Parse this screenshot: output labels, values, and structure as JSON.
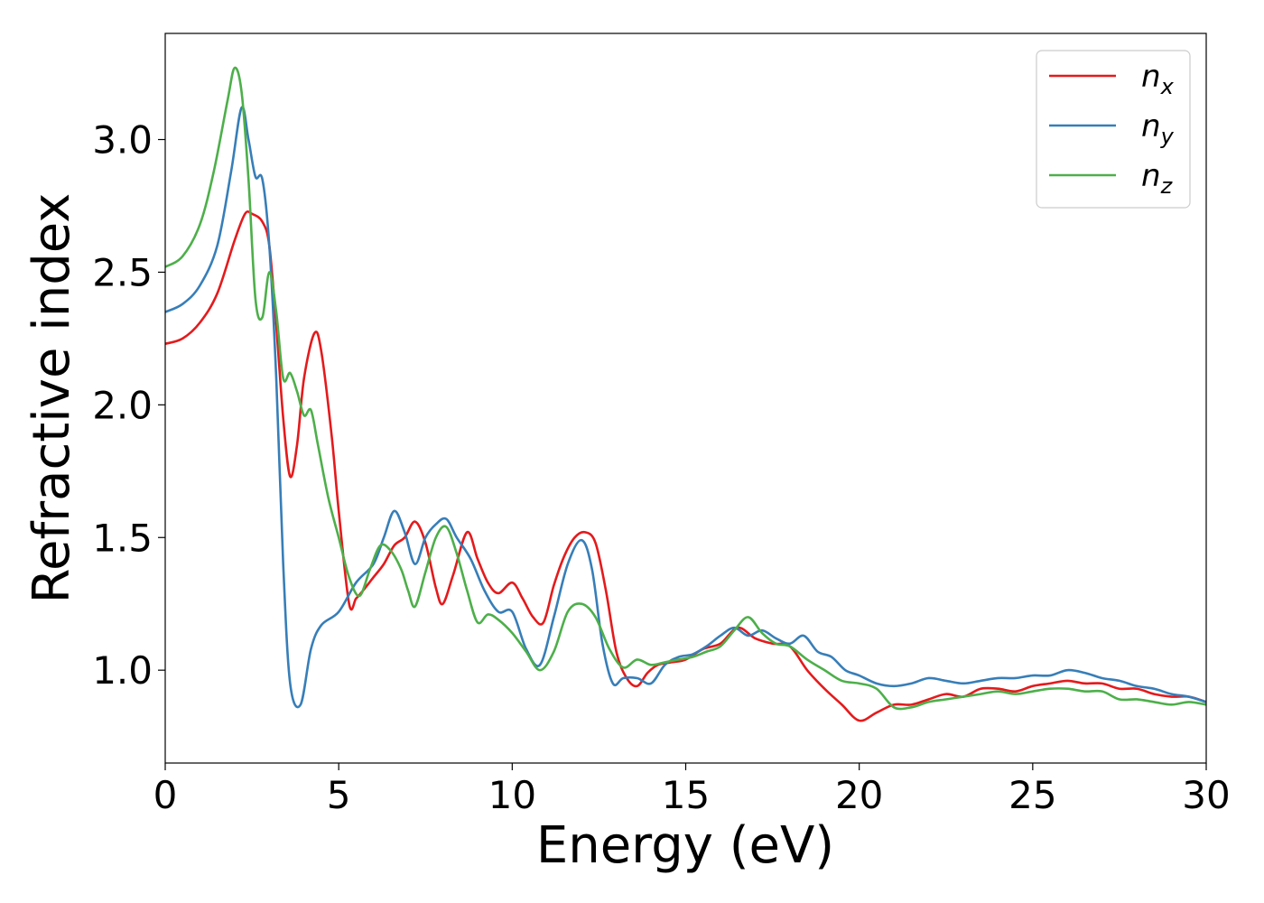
{
  "chart_data": {
    "type": "line",
    "title": "",
    "xlabel": "Energy (eV)",
    "ylabel": "Refractive index",
    "xlim": [
      0,
      30
    ],
    "ylim": [
      0.65,
      3.4
    ],
    "xticks": [
      0,
      5,
      10,
      15,
      20,
      25,
      30
    ],
    "xtick_labels": [
      "0",
      "5",
      "10",
      "15",
      "20",
      "25",
      "30"
    ],
    "yticks": [
      1.0,
      1.5,
      2.0,
      2.5,
      3.0
    ],
    "ytick_labels": [
      "1.0",
      "1.5",
      "2.0",
      "2.5",
      "3.0"
    ],
    "grid": false,
    "legend_position": "top-right",
    "series": [
      {
        "name": "n_x",
        "legend_base": "n",
        "legend_sub": "x",
        "color": "#e41a1c",
        "x": [
          0,
          0.5,
          1.0,
          1.5,
          2.0,
          2.3,
          2.5,
          2.8,
          3.0,
          3.2,
          3.4,
          3.6,
          3.8,
          4.0,
          4.3,
          4.5,
          4.8,
          5.0,
          5.3,
          5.5,
          5.7,
          6.0,
          6.3,
          6.6,
          6.9,
          7.2,
          7.5,
          7.8,
          8.0,
          8.3,
          8.7,
          9.0,
          9.3,
          9.6,
          10.0,
          10.3,
          10.6,
          10.9,
          11.2,
          11.5,
          11.8,
          12.1,
          12.4,
          12.7,
          13.0,
          13.3,
          13.6,
          13.9,
          14.2,
          14.6,
          15.0,
          15.5,
          16.0,
          16.5,
          17.0,
          17.5,
          18.0,
          18.5,
          19.0,
          19.5,
          20.0,
          20.5,
          21.0,
          21.5,
          22.0,
          22.5,
          23.0,
          23.5,
          24.0,
          24.5,
          25.0,
          25.5,
          26.0,
          26.5,
          27.0,
          27.5,
          28.0,
          28.5,
          29.0,
          29.5,
          30.0
        ],
        "y": [
          2.23,
          2.25,
          2.31,
          2.42,
          2.62,
          2.72,
          2.72,
          2.69,
          2.6,
          2.3,
          1.95,
          1.73,
          1.85,
          2.1,
          2.27,
          2.2,
          1.88,
          1.6,
          1.25,
          1.27,
          1.3,
          1.35,
          1.4,
          1.47,
          1.5,
          1.56,
          1.48,
          1.31,
          1.25,
          1.36,
          1.52,
          1.42,
          1.33,
          1.29,
          1.33,
          1.27,
          1.2,
          1.18,
          1.32,
          1.43,
          1.5,
          1.52,
          1.48,
          1.3,
          1.07,
          0.97,
          0.94,
          0.99,
          1.02,
          1.03,
          1.04,
          1.08,
          1.1,
          1.16,
          1.12,
          1.1,
          1.09,
          1.0,
          0.93,
          0.87,
          0.81,
          0.84,
          0.87,
          0.87,
          0.89,
          0.91,
          0.9,
          0.93,
          0.93,
          0.92,
          0.94,
          0.95,
          0.96,
          0.95,
          0.95,
          0.93,
          0.93,
          0.91,
          0.9,
          0.9,
          0.88
        ]
      },
      {
        "name": "n_y",
        "legend_base": "n",
        "legend_sub": "y",
        "color": "#377eb8",
        "x": [
          0,
          0.5,
          1.0,
          1.5,
          1.9,
          2.2,
          2.4,
          2.6,
          2.8,
          3.0,
          3.2,
          3.4,
          3.6,
          3.9,
          4.2,
          4.5,
          5.0,
          5.5,
          6.0,
          6.3,
          6.6,
          6.9,
          7.2,
          7.5,
          7.8,
          8.1,
          8.4,
          8.8,
          9.2,
          9.6,
          10.0,
          10.4,
          10.8,
          11.2,
          11.6,
          12.0,
          12.3,
          12.6,
          12.9,
          13.2,
          13.6,
          14.0,
          14.4,
          14.8,
          15.2,
          15.6,
          16.0,
          16.4,
          16.8,
          17.2,
          17.6,
          18.0,
          18.4,
          18.8,
          19.2,
          19.6,
          20.0,
          20.5,
          21.0,
          21.5,
          22.0,
          22.5,
          23.0,
          23.5,
          24.0,
          24.5,
          25.0,
          25.5,
          26.0,
          26.5,
          27.0,
          27.5,
          28.0,
          28.5,
          29.0,
          29.5,
          30.0
        ],
        "y": [
          2.35,
          2.38,
          2.45,
          2.6,
          2.88,
          3.12,
          3.0,
          2.86,
          2.85,
          2.6,
          2.1,
          1.4,
          0.95,
          0.87,
          1.08,
          1.17,
          1.22,
          1.33,
          1.4,
          1.5,
          1.6,
          1.52,
          1.4,
          1.5,
          1.55,
          1.57,
          1.5,
          1.42,
          1.3,
          1.22,
          1.22,
          1.08,
          1.02,
          1.2,
          1.4,
          1.49,
          1.38,
          1.1,
          0.95,
          0.97,
          0.97,
          0.95,
          1.02,
          1.05,
          1.06,
          1.09,
          1.13,
          1.16,
          1.13,
          1.15,
          1.12,
          1.1,
          1.13,
          1.07,
          1.05,
          1.0,
          0.98,
          0.95,
          0.94,
          0.95,
          0.97,
          0.96,
          0.95,
          0.96,
          0.97,
          0.97,
          0.98,
          0.98,
          1.0,
          0.99,
          0.97,
          0.96,
          0.94,
          0.93,
          0.91,
          0.9,
          0.88
        ]
      },
      {
        "name": "n_z",
        "legend_base": "n",
        "legend_sub": "z",
        "color": "#4daf4a",
        "x": [
          0,
          0.5,
          1.0,
          1.4,
          1.8,
          2.0,
          2.2,
          2.4,
          2.6,
          2.8,
          3.0,
          3.2,
          3.4,
          3.6,
          3.8,
          4.0,
          4.2,
          4.4,
          4.7,
          5.0,
          5.3,
          5.6,
          5.9,
          6.2,
          6.5,
          6.8,
          7.0,
          7.2,
          7.5,
          7.8,
          8.1,
          8.4,
          8.7,
          9.0,
          9.3,
          9.6,
          10.0,
          10.4,
          10.8,
          11.2,
          11.6,
          12.0,
          12.4,
          12.8,
          13.2,
          13.6,
          14.0,
          14.4,
          14.8,
          15.2,
          15.6,
          16.0,
          16.4,
          16.8,
          17.2,
          17.6,
          18.0,
          18.5,
          19.0,
          19.5,
          20.0,
          20.5,
          21.0,
          21.5,
          22.0,
          22.5,
          23.0,
          23.5,
          24.0,
          24.5,
          25.0,
          25.5,
          26.0,
          26.5,
          27.0,
          27.5,
          28.0,
          28.5,
          29.0,
          29.5,
          30.0
        ],
        "y": [
          2.52,
          2.56,
          2.68,
          2.88,
          3.15,
          3.27,
          3.18,
          2.85,
          2.4,
          2.33,
          2.5,
          2.35,
          2.1,
          2.12,
          2.05,
          1.96,
          1.98,
          1.85,
          1.65,
          1.5,
          1.35,
          1.28,
          1.38,
          1.47,
          1.45,
          1.38,
          1.3,
          1.24,
          1.37,
          1.5,
          1.54,
          1.44,
          1.3,
          1.18,
          1.21,
          1.19,
          1.14,
          1.07,
          1.0,
          1.07,
          1.22,
          1.25,
          1.2,
          1.08,
          1.01,
          1.04,
          1.02,
          1.03,
          1.04,
          1.05,
          1.07,
          1.09,
          1.15,
          1.2,
          1.14,
          1.1,
          1.09,
          1.04,
          1.0,
          0.96,
          0.95,
          0.93,
          0.86,
          0.86,
          0.88,
          0.89,
          0.9,
          0.91,
          0.92,
          0.91,
          0.92,
          0.93,
          0.93,
          0.92,
          0.92,
          0.89,
          0.89,
          0.88,
          0.87,
          0.88,
          0.87
        ]
      }
    ]
  }
}
